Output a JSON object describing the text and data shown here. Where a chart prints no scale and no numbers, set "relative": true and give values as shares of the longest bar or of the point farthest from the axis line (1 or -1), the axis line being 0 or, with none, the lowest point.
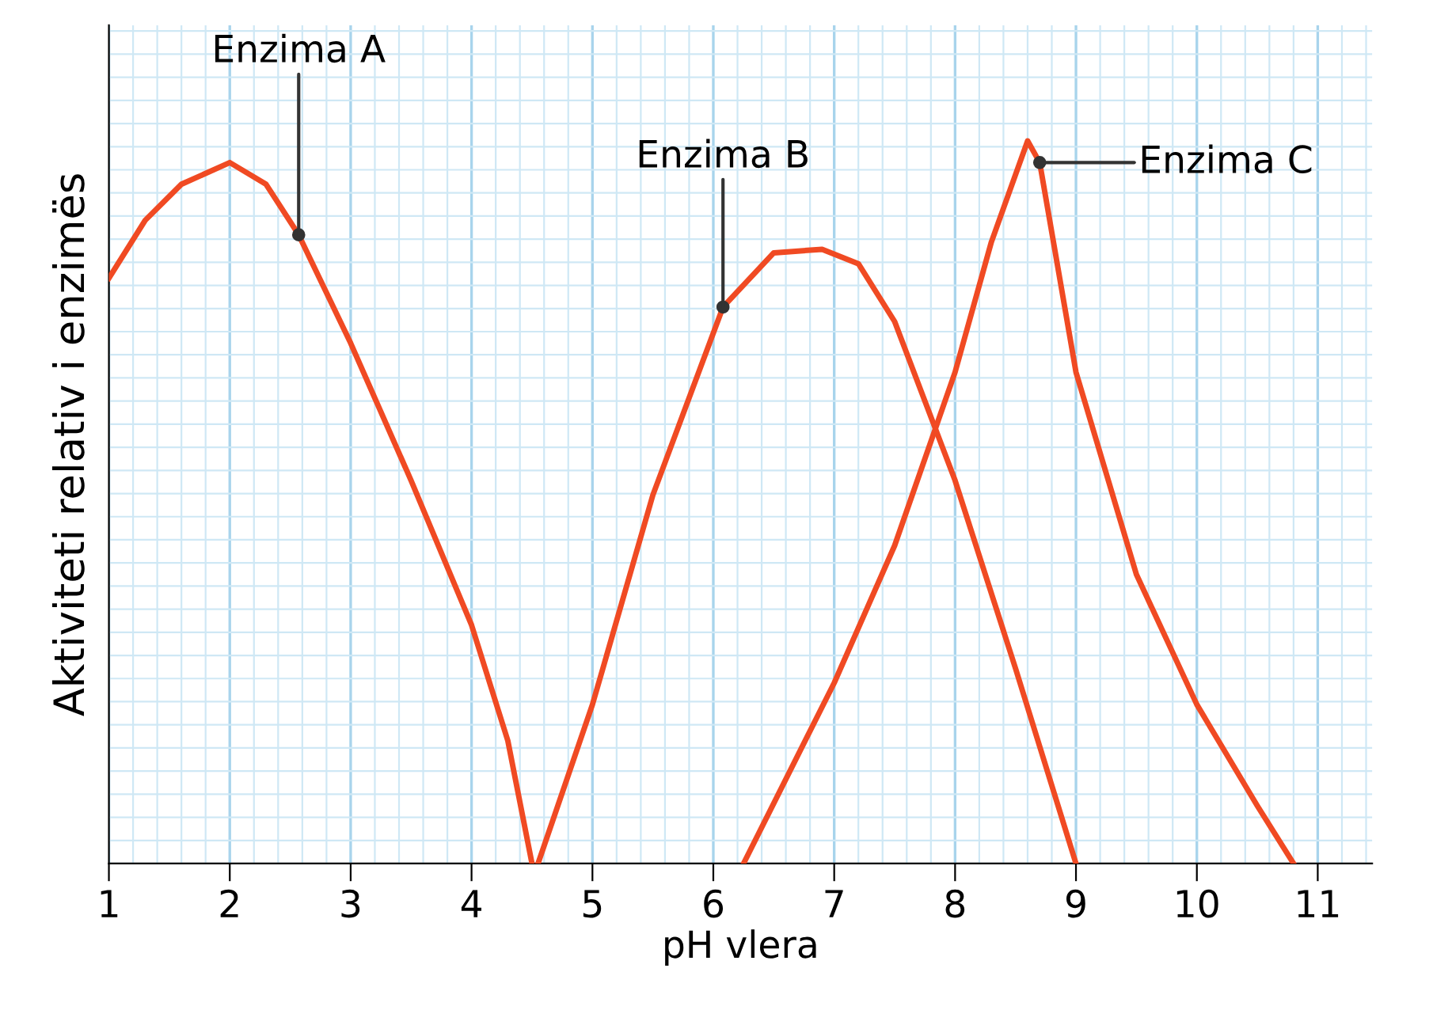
{
  "chart_data": {
    "type": "line",
    "relative": true,
    "xlabel": "pH vlera",
    "ylabel": "Aktiviteti relativ i enzimës",
    "xlim": [
      1,
      11.45
    ],
    "xticks": [
      1,
      2,
      3,
      4,
      5,
      6,
      7,
      8,
      9,
      10,
      11
    ],
    "grid": true,
    "marker": "none",
    "line_style": "solid",
    "series": [
      {
        "color": "#f04a23",
        "x": [
          1,
          1.3,
          1.6,
          2,
          2.3,
          2.57,
          3,
          3.5,
          4,
          4.3,
          4.5
        ],
        "values": [
          0.81,
          0.89,
          0.94,
          0.97,
          0.94,
          0.87,
          0.72,
          0.53,
          0.33,
          0.17,
          0
        ]
      },
      {
        "color": "#f04a23",
        "x": [
          4.55,
          5,
          5.5,
          6.08,
          6.5,
          6.9,
          7.2,
          7.5,
          8,
          8.5,
          9
        ],
        "values": [
          0,
          0.22,
          0.51,
          0.77,
          0.845,
          0.85,
          0.83,
          0.75,
          0.53,
          0.27,
          0
        ]
      },
      {
        "color": "#f04a23",
        "x": [
          6.25,
          7,
          7.5,
          8,
          8.3,
          8.6,
          8.7,
          9,
          9.5,
          10,
          10.5,
          10.8
        ],
        "values": [
          0,
          0.25,
          0.44,
          0.68,
          0.86,
          1,
          0.97,
          0.68,
          0.4,
          0.22,
          0.08,
          0
        ]
      }
    ],
    "annotations": [
      {
        "text": "Enzima A",
        "x": 2.57,
        "y": 0.87
      },
      {
        "text": "Enzima B",
        "x": 6.08,
        "y": 0.77
      },
      {
        "text": "Enzima C",
        "x": 8.7,
        "y": 0.97
      }
    ]
  }
}
